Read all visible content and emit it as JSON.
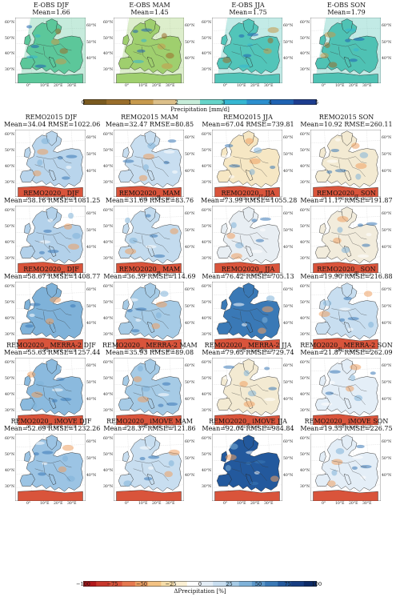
{
  "obs_colorbar": {
    "label": "Precipitation [mm/d]",
    "ticks": [
      "0",
      "1",
      "2",
      "3",
      "4",
      "5"
    ],
    "colors": [
      "#7a5a1f",
      "#9a6e2b",
      "#c79a4d",
      "#dcc08a",
      "#c6ecd8",
      "#66d4c9",
      "#35b7d2",
      "#2c8fce",
      "#1f63b3",
      "#1d3d8f"
    ]
  },
  "diff_colorbar": {
    "label": "ΔPrecipitation [%]",
    "ticks": [
      "−100",
      "−75",
      "−50",
      "−25",
      "0",
      "25",
      "50",
      "75",
      "100"
    ],
    "colors": [
      "#b2181b",
      "#c8372b",
      "#d9543b",
      "#e6794f",
      "#eea063",
      "#f3c283",
      "#f7dea9",
      "#fbf0d4",
      "#ffffff",
      "#e4eef7",
      "#c8def0",
      "#a6cbe6",
      "#7fb2d9",
      "#5a96c9",
      "#3a79b6",
      "#23599d",
      "#173d82",
      "#0c2a66"
    ]
  },
  "axis_labels": {
    "lat": [
      "60°N",
      "50°N",
      "40°N",
      "30°N"
    ],
    "lon": [
      "0°",
      "10°E",
      "20°E",
      "30°E"
    ]
  },
  "rows": [
    {
      "kind": "obs",
      "panels": [
        {
          "l1": "E-OBS DJF",
          "l2": "Mean=1.66",
          "fill": "#5cc79a"
        },
        {
          "l1": "E-OBS MAM",
          "l2": "Mean=1.45",
          "fill": "#9fcf6e"
        },
        {
          "l1": "E-OBS JJA",
          "l2": "Mean=1.75",
          "fill": "#52c5b9"
        },
        {
          "l1": "E-OBS SON",
          "l2": "Mean=1.79",
          "fill": "#4fc2b4"
        }
      ]
    },
    {
      "kind": "diff",
      "panels": [
        {
          "l1": "REMO2015 DJF",
          "l2": "Mean=34.04 RMSE=1022.06",
          "fill": "#b9d5ec"
        },
        {
          "l1": "REMO2015 MAM",
          "l2": "Mean=32.47 RMSE=80.85",
          "fill": "#c8def0"
        },
        {
          "l1": "REMO2015 JJA",
          "l2": "Mean=67.04 RMSE=739.81",
          "fill": "#f6e7c4"
        },
        {
          "l1": "REMO2015 SON",
          "l2": "Mean=10.92 RMSE=260.11",
          "fill": "#f3ead2"
        }
      ]
    },
    {
      "kind": "diff",
      "panels": [
        {
          "l1": "REMO2020",
          "sub": "gi",
          "l1b": " DJF",
          "l2": "Mean=38.16 RMSE=1081.25",
          "fill": "#b3d1ea"
        },
        {
          "l1": "REMO2020",
          "sub": "gi",
          "l1b": " MAM",
          "l2": "Mean=31.69 RMSE=83.76",
          "fill": "#c3dbee"
        },
        {
          "l1": "REMO2020",
          "sub": "IT",
          "l1b": " JJA",
          "l2": "Mean=73.99 RMSE=1055.28",
          "fill": "#e8eef3"
        },
        {
          "l1": "REMO2020",
          "sub": "IT",
          "l1b": " SON",
          "l2": "Mean=11.17 RMSE=191.87",
          "fill": "#f2ecdc"
        }
      ]
    },
    {
      "kind": "diff",
      "panels": [
        {
          "l1": "REMO2020",
          "sub": "gi",
          "l1b": " DJF",
          "l2": "Mean=58.67 RMSE=1408.77",
          "fill": "#7fb2d9"
        },
        {
          "l1": "REMO2020",
          "sub": "gi",
          "l1b": " MAM",
          "l2": "Mean=36.59 RMSE=114.69",
          "fill": "#a6cbe6"
        },
        {
          "l1": "REMO2020",
          "sub": "gi",
          "l1b": " JJA",
          "l2": "Mean=76.42 RMSE=705.13",
          "fill": "#3a79b6"
        },
        {
          "l1": "REMO2020",
          "sub": "gi",
          "l1b": " SON",
          "l2": "Mean=19.90 RMSE=216.88",
          "fill": "#c8def0"
        }
      ]
    },
    {
      "kind": "diff",
      "panels": [
        {
          "l1": "REMO2020",
          "sub": "gi",
          "l1b": " MERRA-2 DJF",
          "l2": "Mean=55.63 RMSE=1257.44",
          "fill": "#8bbade"
        },
        {
          "l1": "REMO2020",
          "sub": "gi",
          "l1b": " MERRA-2 MAM",
          "l2": "Mean=35.93 RMSE=89.08",
          "fill": "#a6cbe6"
        },
        {
          "l1": "REMO2020",
          "sub": "gi",
          "l1b": " MERRA-2 JJA",
          "l2": "Mean=79.65 RMSE=729.74",
          "fill": "#f3ead2"
        },
        {
          "l1": "REMO2020",
          "sub": "gi",
          "l1b": " MERRA-2 SON",
          "l2": "Mean=21.87 RMSE=262.09",
          "fill": "#e4eef7"
        }
      ]
    },
    {
      "kind": "diff",
      "panels": [
        {
          "l1": "REMO2020",
          "sub": "gi",
          "l1b": " iMOVE DJF",
          "l2": "Mean=52.69 RMSE=1232.26",
          "fill": "#9cc4e4"
        },
        {
          "l1": "REMO2020",
          "sub": "gi",
          "l1b": " iMOVE MAM",
          "l2": "Mean=28.37 RMSE=121.86",
          "fill": "#c8def0"
        },
        {
          "l1": "REMO2020",
          "sub": "gi",
          "l1b": " iMOVE JJA",
          "l2": "Mean=92.04 RMSE=984.84",
          "fill": "#23599d"
        },
        {
          "l1": "REMO2020",
          "sub": "gi",
          "l1b": " iMOVE SON",
          "l2": "Mean=19.53 RMSE=226.75",
          "fill": "#e4eef7"
        }
      ]
    }
  ],
  "chart_data": {
    "type": "heatmap",
    "title": "",
    "description_rows": [
      "E-OBS",
      "REMO2015",
      "REMO2020gi",
      "REMO2020gi",
      "REMO2020gi MERRA-2",
      "REMO2020gi iMOVE"
    ],
    "seasons": [
      "DJF",
      "MAM",
      "JJA",
      "SON"
    ],
    "obs_mean_mm_per_day": {
      "DJF": 1.66,
      "MAM": 1.45,
      "JJA": 1.75,
      "SON": 1.79
    },
    "obs_colorbar_range": [
      0,
      5
    ],
    "diff_colorbar_range": [
      -100,
      100
    ],
    "series": [
      {
        "name": "REMO2015",
        "mean": [
          34.04,
          32.47,
          67.04,
          10.92
        ],
        "rmse": [
          1022.06,
          80.85,
          739.81,
          260.11
        ]
      },
      {
        "name": "REMO2020gi/IT",
        "mean": [
          38.16,
          31.69,
          73.99,
          11.17
        ],
        "rmse": [
          1081.25,
          83.76,
          1055.28,
          191.87
        ]
      },
      {
        "name": "REMO2020gi",
        "mean": [
          58.67,
          36.59,
          76.42,
          19.9
        ],
        "rmse": [
          1408.77,
          114.69,
          705.13,
          216.88
        ]
      },
      {
        "name": "REMO2020gi MERRA-2",
        "mean": [
          55.63,
          35.93,
          79.65,
          21.87
        ],
        "rmse": [
          1257.44,
          89.08,
          729.74,
          262.09
        ]
      },
      {
        "name": "REMO2020gi iMOVE",
        "mean": [
          52.69,
          28.37,
          92.04,
          19.53
        ],
        "rmse": [
          1232.26,
          121.86,
          984.84,
          226.75
        ]
      }
    ]
  }
}
